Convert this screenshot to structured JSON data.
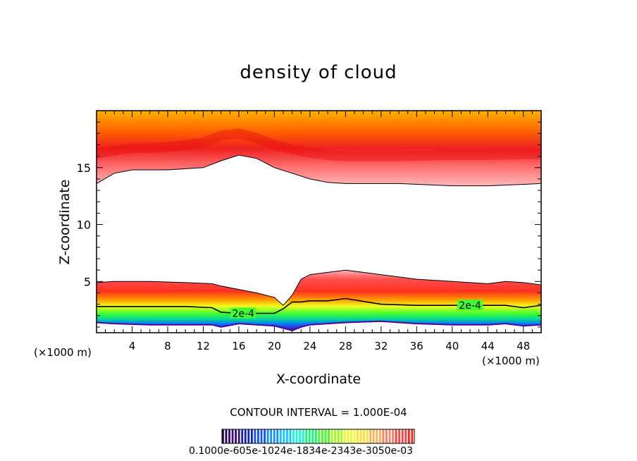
{
  "colors": {
    "band_top_light": "#ffb0b0",
    "band_top_core": "#ee2020",
    "band_top_edge": "#ffa800",
    "low_cloud": [
      "#ff4040",
      "#ff7a00",
      "#ffd400",
      "#80ff00",
      "#00e060",
      "#00ccff",
      "#2040ff",
      "#7000a0"
    ],
    "contour_line": "#000000",
    "colorbar": [
      "#2a0050",
      "#3a0a80",
      "#1020c0",
      "#1050ff",
      "#1090ff",
      "#10c8ff",
      "#10ffd0",
      "#10ff70",
      "#40ff20",
      "#a0ff10",
      "#e8ff20",
      "#ffe030",
      "#ffb050",
      "#ff8060",
      "#ff4040",
      "#ff2020"
    ]
  },
  "chart_data": {
    "type": "heatmap",
    "title": "density of cloud",
    "xlabel": "X-coordinate",
    "ylabel": "Z-coordinate",
    "x_unit": "(×1000 m)",
    "xlim": [
      0,
      50
    ],
    "ylim": [
      0.5,
      20
    ],
    "x_ticks": [
      4,
      8,
      12,
      16,
      20,
      24,
      28,
      32,
      36,
      40,
      44,
      48
    ],
    "y_ticks": [
      5,
      10,
      15
    ],
    "contour_interval": "CONTOUR INTERVAL = 1.000E-04",
    "contour_labels": [
      {
        "text": "2e-4",
        "x": 16.5,
        "z": 2.2
      },
      {
        "text": "2e-4",
        "x": 42,
        "z": 2.9
      }
    ],
    "upper_layer": {
      "x": [
        0,
        2,
        4,
        8,
        12,
        14,
        16,
        18,
        20,
        22,
        24,
        26,
        28,
        30,
        34,
        40,
        44,
        50
      ],
      "cloud_base": [
        13.6,
        14.5,
        14.8,
        14.8,
        15.0,
        15.6,
        16.1,
        15.8,
        15.0,
        14.5,
        14.0,
        13.7,
        13.6,
        13.6,
        13.6,
        13.4,
        13.4,
        13.6
      ],
      "core_z": [
        16.2,
        16.5,
        16.7,
        16.8,
        17.2,
        17.8,
        18.0,
        17.6,
        17.0,
        16.6,
        16.3,
        16.1,
        16.0,
        16.0,
        16.0,
        16.1,
        16.1,
        16.2
      ]
    },
    "lower_layer": {
      "x": [
        0,
        2,
        6,
        10,
        13,
        14,
        16,
        18,
        20,
        21,
        22,
        23,
        24,
        26,
        28,
        32,
        36,
        40,
        44,
        46,
        48,
        50
      ],
      "cloud_top": [
        4.9,
        5.0,
        5.0,
        4.9,
        4.8,
        4.6,
        4.3,
        4.0,
        3.6,
        2.9,
        3.8,
        5.2,
        5.6,
        5.8,
        6.0,
        5.6,
        5.2,
        5.0,
        4.8,
        5.0,
        4.9,
        4.7
      ],
      "contour_2e4": [
        2.8,
        2.8,
        2.8,
        2.8,
        2.7,
        2.3,
        2.2,
        2.2,
        2.2,
        2.6,
        3.2,
        3.2,
        3.3,
        3.3,
        3.5,
        3.0,
        2.9,
        2.9,
        2.9,
        2.9,
        2.7,
        2.9
      ],
      "cloud_bottom": [
        1.4,
        1.3,
        1.2,
        1.2,
        1.2,
        1.0,
        1.3,
        1.2,
        1.1,
        0.9,
        0.7,
        1.0,
        1.2,
        1.3,
        1.4,
        1.5,
        1.3,
        1.2,
        1.2,
        1.3,
        1.1,
        1.2
      ]
    },
    "colorbar": {
      "min": 0.0001,
      "max": 0.003,
      "labels_text": "0.1000e-605e-1024e-1834e-2343e-3050e-03"
    }
  }
}
